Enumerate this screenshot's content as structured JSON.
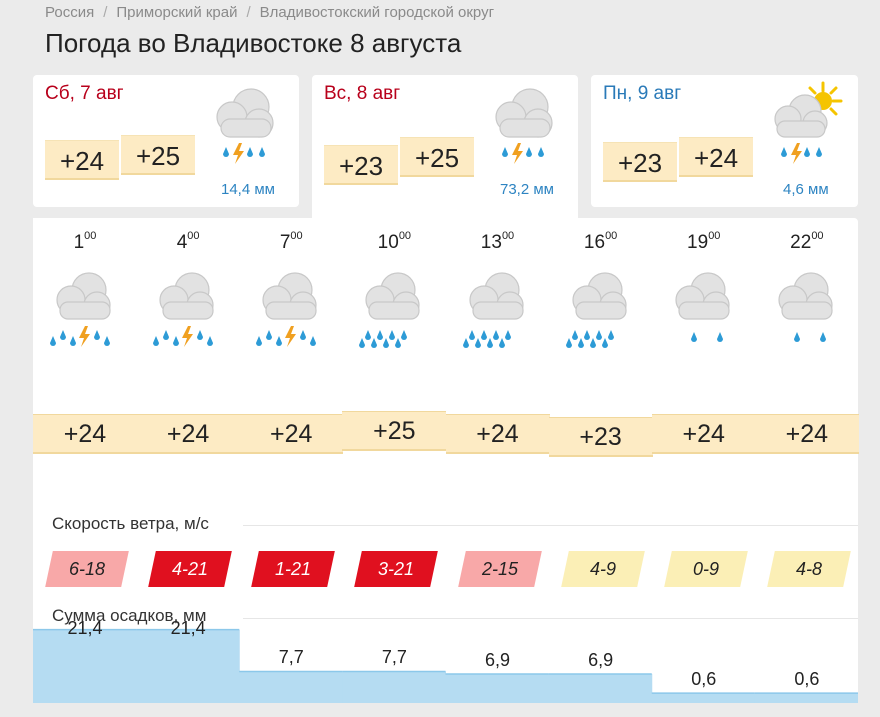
{
  "breadcrumb": [
    "Россия",
    "Приморский край",
    "Владивостокский городской округ"
  ],
  "page_title": "Погода во Владивостоке 8 августа",
  "days": [
    {
      "label": "Сб, 7 авг",
      "color": "red",
      "tmin": "+24",
      "tmax": "+25",
      "precip": "14,4 мм",
      "icon": "cloud-rain-thunder-icon"
    },
    {
      "label": "Вс, 8 авг",
      "color": "red",
      "tmin": "+23",
      "tmax": "+25",
      "precip": "73,2 мм",
      "icon": "cloud-rain-thunder-icon"
    },
    {
      "label": "Пн, 9 авг",
      "color": "blue",
      "tmin": "+23",
      "tmax": "+24",
      "precip": "4,6 мм",
      "icon": "sun-cloud-rain-thunder-icon"
    }
  ],
  "hourly": {
    "hours": [
      {
        "h": "1",
        "m": "00"
      },
      {
        "h": "4",
        "m": "00"
      },
      {
        "h": "7",
        "m": "00"
      },
      {
        "h": "10",
        "m": "00"
      },
      {
        "h": "13",
        "m": "00"
      },
      {
        "h": "16",
        "m": "00"
      },
      {
        "h": "19",
        "m": "00"
      },
      {
        "h": "22",
        "m": "00"
      }
    ],
    "icons": [
      "cloud-rain-thunder-icon",
      "cloud-rain-thunder-icon",
      "cloud-rain-thunder-icon",
      "cloud-heavy-rain-icon",
      "cloud-heavy-rain-icon",
      "cloud-heavy-rain-icon",
      "cloud-light-rain-icon",
      "cloud-light-rain-icon"
    ],
    "temps": [
      "+24",
      "+24",
      "+24",
      "+25",
      "+24",
      "+23",
      "+24",
      "+24"
    ],
    "wind_label": "Скорость ветра, м/с",
    "wind": [
      "6-18",
      "4-21",
      "1-21",
      "3-21",
      "2-15",
      "4-9",
      "0-9",
      "4-8"
    ],
    "precip_label": "Сумма осадков, мм",
    "precip": [
      "21,4",
      "21,4",
      "7,7",
      "7,7",
      "6,9",
      "6,9",
      "0,6",
      "0,6"
    ]
  },
  "colors": {
    "accent_red": "#b8001b",
    "accent_blue": "#2a7ab8",
    "temp_bg": "#fdebc4",
    "rain_blue": "#2d9bd6",
    "lightning": "#f0a020",
    "wind_colors": [
      "#f8a8a8",
      "#e0101f",
      "#e0101f",
      "#e0101f",
      "#f8a8a8",
      "#fbefb6",
      "#fbefb6",
      "#fbefb6"
    ],
    "wind_text": [
      "#222",
      "#fff",
      "#fff",
      "#fff",
      "#222",
      "#222",
      "#222",
      "#222"
    ]
  }
}
